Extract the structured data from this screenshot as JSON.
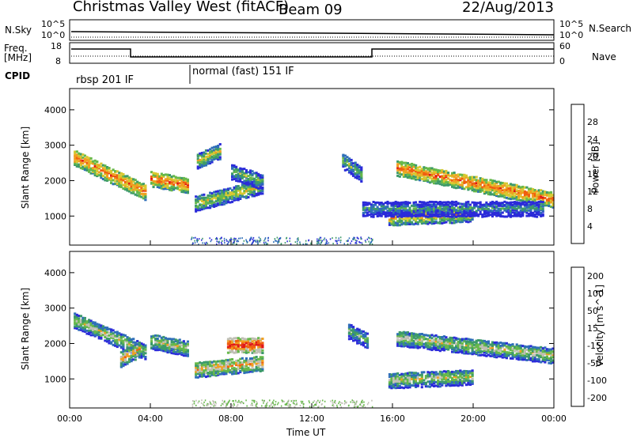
{
  "header": {
    "station": "Christmas Valley West (fitACF)",
    "beam": "Beam 09",
    "date": "22/Aug/2013"
  },
  "strip_labels": {
    "nsky": "N.Sky",
    "nsearch": "N.Search",
    "freq_line1": "Freq.",
    "freq_line2": "[MHz]",
    "nave": "Nave",
    "cpid": "CPID",
    "cpid_mode1": "rbsp 201 IF",
    "cpid_mode2": "normal (fast) 151 IF",
    "noise_ticks": [
      "10^5",
      "10^0"
    ],
    "freq_ticks": [
      "18",
      "8"
    ],
    "nave_ticks": [
      "60",
      "0"
    ]
  },
  "colors": {
    "power_scale": [
      "#2b2bd9",
      "#2f6fb8",
      "#3d9a6a",
      "#66b84a",
      "#d8c830",
      "#f0a020",
      "#f06010",
      "#e01818"
    ],
    "velocity_scale": [
      "#2b2bd9",
      "#2f6fb8",
      "#3d9a6a",
      "#66b84a",
      "#bfbfb4",
      "#f0a020",
      "#f06010",
      "#e01818"
    ]
  },
  "chart_data": [
    {
      "type": "heatmap",
      "name": "power",
      "ylabel": "Slant Range [km]",
      "yticks": [
        1000,
        2000,
        3000,
        4000
      ],
      "ylim": [
        180,
        4600
      ],
      "xlim": [
        0,
        24
      ],
      "colorbar_label": "Power [dB]",
      "colorbar_ticks": [
        4,
        8,
        12,
        16,
        20,
        24,
        28
      ],
      "echo_bands": [
        {
          "t0": 0.2,
          "t1": 3.8,
          "r_start": 2700,
          "r_end": 1700,
          "level": 6
        },
        {
          "t0": 4.0,
          "t1": 5.9,
          "r_start": 2100,
          "r_end": 1900,
          "level": 6
        },
        {
          "t0": 6.2,
          "t1": 9.6,
          "r_start": 1400,
          "r_end": 1900,
          "level": 4
        },
        {
          "t0": 8.0,
          "t1": 9.6,
          "r_start": 2300,
          "r_end": 2000,
          "level": 3
        },
        {
          "t0": 6.3,
          "t1": 7.5,
          "r_start": 2600,
          "r_end": 2900,
          "level": 4
        },
        {
          "t0": 13.5,
          "t1": 14.5,
          "r_start": 2600,
          "r_end": 2200,
          "level": 3
        },
        {
          "t0": 16.2,
          "t1": 24.0,
          "r_start": 2400,
          "r_end": 1500,
          "level": 6
        },
        {
          "t0": 15.8,
          "t1": 20.0,
          "r_start": 1000,
          "r_end": 1100,
          "level": 5
        },
        {
          "t0": 14.5,
          "t1": 23.5,
          "r_start": 1250,
          "r_end": 1250,
          "level": 2
        }
      ]
    },
    {
      "type": "heatmap",
      "name": "velocity",
      "ylabel": "Slant Range [km]",
      "xlabel": "Time UT",
      "yticks": [
        1000,
        2000,
        3000,
        4000
      ],
      "ylim": [
        180,
        4600
      ],
      "xlim": [
        0,
        24
      ],
      "xticks": [
        "00:00",
        "04:00",
        "08:00",
        "12:00",
        "16:00",
        "20:00",
        "00:00"
      ],
      "colorbar_label": "Velocity [m s^-1]",
      "colorbar_ticks": [
        200,
        100,
        50,
        15,
        -15,
        -50,
        -100,
        -200
      ],
      "echo_bands": [
        {
          "t0": 0.2,
          "t1": 3.8,
          "r_start": 2700,
          "r_end": 1800,
          "level": 4
        },
        {
          "t0": 4.0,
          "t1": 5.9,
          "r_start": 2100,
          "r_end": 1900,
          "level": 4
        },
        {
          "t0": 6.2,
          "t1": 9.6,
          "r_start": 1300,
          "r_end": 1500,
          "level": 5
        },
        {
          "t0": 7.8,
          "t1": 9.6,
          "r_start": 2000,
          "r_end": 2000,
          "level": 7
        },
        {
          "t0": 2.5,
          "t1": 3.5,
          "r_start": 1600,
          "r_end": 1900,
          "level": 5
        },
        {
          "t0": 13.8,
          "t1": 14.8,
          "r_start": 2400,
          "r_end": 2100,
          "level": 3
        },
        {
          "t0": 16.2,
          "t1": 24.0,
          "r_start": 2200,
          "r_end": 1700,
          "level": 4
        },
        {
          "t0": 15.8,
          "t1": 20.0,
          "r_start": 1000,
          "r_end": 1100,
          "level": 4
        }
      ]
    }
  ]
}
